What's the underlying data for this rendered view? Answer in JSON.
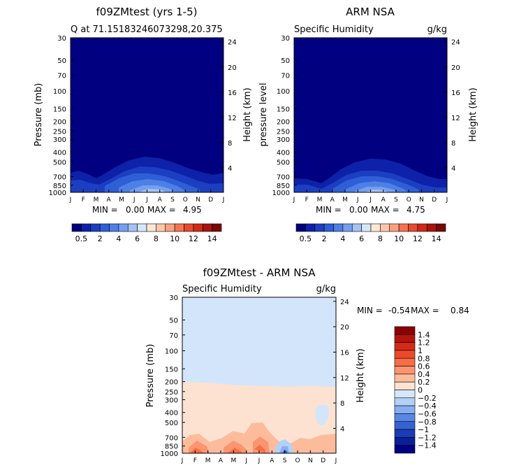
{
  "chart_data": [
    {
      "type": "heatmap",
      "title": "f09ZMtest (yrs 1-5)",
      "subtitle": "Q at 71.15183246073298,20.375",
      "unit": "",
      "ylabel": "Pressure (mb)",
      "y2label": "Height (km)",
      "yticks": [
        "30",
        "50",
        "70",
        "100",
        "150",
        "200",
        "250",
        "300",
        "400",
        "500",
        "700",
        "850",
        "1000"
      ],
      "y2ticks": [
        "24",
        "20",
        "16",
        "12",
        "8",
        "4"
      ],
      "months": [
        "J",
        "F",
        "M",
        "A",
        "M",
        "J",
        "J",
        "A",
        "S",
        "O",
        "N",
        "D",
        "J"
      ],
      "min_label": "MIN =",
      "min_value": "0.00",
      "max_label": "MAX =",
      "max_value": "4.95",
      "field": "specific humidity, highest near surface in Jul-Aug (~4-5 g/kg), near 0 above 500 mb"
    },
    {
      "type": "heatmap",
      "title": "ARM NSA",
      "subtitle": "Specific Humidity",
      "unit": "g/kg",
      "ylabel": "pressure level",
      "y2label": "Height (km)",
      "yticks": [
        "30",
        "50",
        "70",
        "100",
        "150",
        "200",
        "250",
        "300",
        "400",
        "500",
        "700",
        "850",
        "1000"
      ],
      "y2ticks": [
        "24",
        "20",
        "16",
        "12",
        "8",
        "4"
      ],
      "months": [
        "J",
        "F",
        "M",
        "A",
        "M",
        "J",
        "J",
        "A",
        "S",
        "O",
        "N",
        "D",
        "J"
      ],
      "min_label": "MIN =",
      "min_value": "0.00",
      "max_label": "MAX =",
      "max_value": "4.75"
    },
    {
      "type": "heatmap",
      "title": "f09ZMtest - ARM NSA",
      "subtitle": "Specific Humidity",
      "unit": "g/kg",
      "ylabel": "Pressure (mb)",
      "y2label": "Height (km)",
      "yticks": [
        "30",
        "50",
        "70",
        "100",
        "150",
        "200",
        "250",
        "300",
        "400",
        "500",
        "700",
        "850",
        "1000"
      ],
      "y2ticks": [
        "24",
        "20",
        "16",
        "12",
        "8",
        "4"
      ],
      "months": [
        "J",
        "F",
        "M",
        "A",
        "M",
        "J",
        "J",
        "A",
        "S",
        "O",
        "N",
        "D",
        "J"
      ],
      "min_label": "MIN =",
      "min_value": "-0.54",
      "max_label": "MAX =",
      "max_value": "0.84"
    }
  ],
  "colorbar_seq": {
    "labels": [
      "0.5",
      "2",
      "4",
      "6",
      "8",
      "10",
      "12",
      "14"
    ],
    "colors": [
      "#000080",
      "#0d22a8",
      "#1c3fc2",
      "#2e5fd6",
      "#4d7fe6",
      "#759fef",
      "#a3c3f5",
      "#d5e6fb",
      "#fde6d6",
      "#fcc6ab",
      "#f9a07e",
      "#f47350",
      "#e84a2e",
      "#cf2a18",
      "#a8140c",
      "#7a0605"
    ]
  },
  "colorbar_diff": {
    "labels": [
      "1.4",
      "1.2",
      "1",
      "0.8",
      "0.6",
      "0.4",
      "0.2",
      "0",
      "−0.2",
      "−0.4",
      "−0.6",
      "−0.8",
      "−1",
      "−1.2",
      "−1.4"
    ],
    "colors": [
      "#8b0000",
      "#b3140e",
      "#d42a18",
      "#eb4a2a",
      "#f76d45",
      "#fb9570",
      "#fcbc9c",
      "#fde2d1",
      "#d6e7fb",
      "#b3d0f6",
      "#86aef0",
      "#5a87e4",
      "#3662d2",
      "#1a3cb8",
      "#0b1f98",
      "#000080"
    ]
  },
  "colors": {
    "base_blue": "#000080",
    "diff_bg": "#d3e5fa",
    "diff_warm": "#fde2d1"
  }
}
